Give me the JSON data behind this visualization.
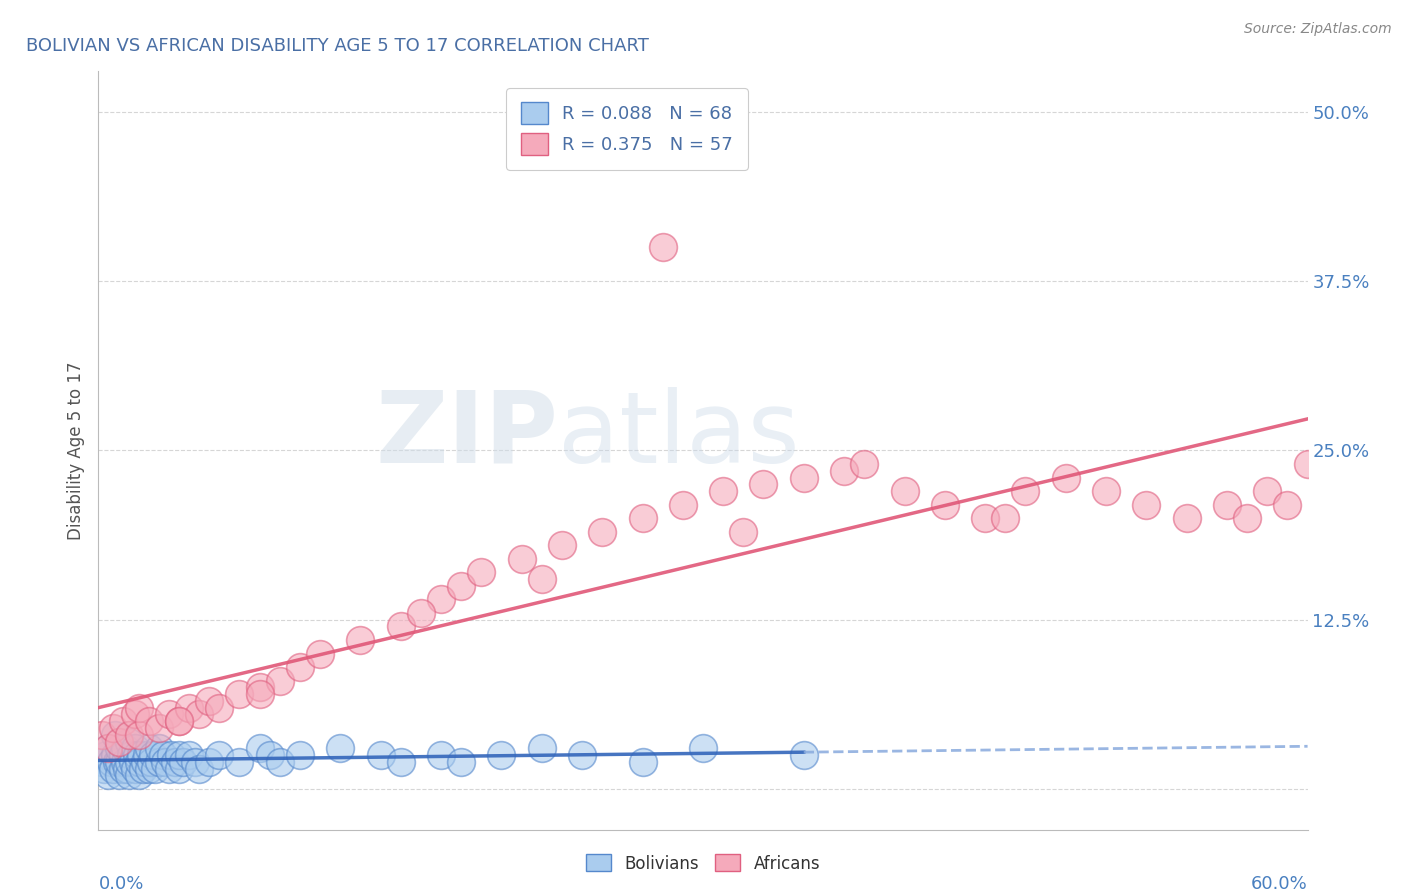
{
  "title": "BOLIVIAN VS AFRICAN DISABILITY AGE 5 TO 17 CORRELATION CHART",
  "source_text": "Source: ZipAtlas.com",
  "ylabel": "Disability Age 5 to 17",
  "xlim": [
    0.0,
    0.6
  ],
  "ylim": [
    -0.03,
    0.53
  ],
  "yticks": [
    0.0,
    0.125,
    0.25,
    0.375,
    0.5
  ],
  "ytick_labels": [
    "",
    "12.5%",
    "25.0%",
    "37.5%",
    "50.0%"
  ],
  "title_color": "#4a6fa5",
  "title_fontsize": 13,
  "background_color": "#ffffff",
  "grid_color": "#cccccc",
  "watermark_text": "ZIPatlas",
  "bolivian_face_color": "#aaccee",
  "bolivian_edge_color": "#5588cc",
  "african_face_color": "#f5aabb",
  "african_edge_color": "#e06080",
  "bolivian_line_color": "#3366bb",
  "bolivian_dash_color": "#88aadd",
  "african_line_color": "#e05878",
  "legend_color": "#4a6fa5",
  "boli_x": [
    0.002,
    0.003,
    0.004,
    0.005,
    0.005,
    0.006,
    0.007,
    0.008,
    0.008,
    0.009,
    0.01,
    0.01,
    0.01,
    0.012,
    0.012,
    0.013,
    0.013,
    0.014,
    0.015,
    0.015,
    0.015,
    0.016,
    0.017,
    0.018,
    0.018,
    0.019,
    0.02,
    0.02,
    0.021,
    0.022,
    0.023,
    0.024,
    0.025,
    0.025,
    0.026,
    0.027,
    0.028,
    0.03,
    0.03,
    0.032,
    0.033,
    0.035,
    0.036,
    0.038,
    0.04,
    0.04,
    0.042,
    0.045,
    0.048,
    0.05,
    0.055,
    0.06,
    0.07,
    0.08,
    0.085,
    0.09,
    0.1,
    0.12,
    0.14,
    0.15,
    0.17,
    0.18,
    0.2,
    0.22,
    0.24,
    0.27,
    0.3,
    0.35
  ],
  "boli_y": [
    0.02,
    0.015,
    0.025,
    0.01,
    0.03,
    0.02,
    0.015,
    0.025,
    0.04,
    0.02,
    0.01,
    0.02,
    0.03,
    0.015,
    0.025,
    0.02,
    0.03,
    0.015,
    0.01,
    0.02,
    0.035,
    0.025,
    0.02,
    0.015,
    0.03,
    0.025,
    0.01,
    0.02,
    0.025,
    0.015,
    0.02,
    0.025,
    0.015,
    0.03,
    0.02,
    0.025,
    0.015,
    0.02,
    0.03,
    0.025,
    0.02,
    0.015,
    0.025,
    0.02,
    0.015,
    0.025,
    0.02,
    0.025,
    0.02,
    0.015,
    0.02,
    0.025,
    0.02,
    0.03,
    0.025,
    0.02,
    0.025,
    0.03,
    0.025,
    0.02,
    0.025,
    0.02,
    0.025,
    0.03,
    0.025,
    0.02,
    0.03,
    0.025
  ],
  "afri_x": [
    0.002,
    0.005,
    0.007,
    0.01,
    0.012,
    0.015,
    0.018,
    0.02,
    0.02,
    0.025,
    0.03,
    0.035,
    0.04,
    0.045,
    0.05,
    0.055,
    0.06,
    0.07,
    0.08,
    0.09,
    0.1,
    0.11,
    0.13,
    0.15,
    0.17,
    0.18,
    0.19,
    0.21,
    0.23,
    0.25,
    0.27,
    0.29,
    0.31,
    0.33,
    0.35,
    0.37,
    0.38,
    0.4,
    0.42,
    0.44,
    0.46,
    0.48,
    0.5,
    0.52,
    0.54,
    0.56,
    0.57,
    0.58,
    0.59,
    0.6,
    0.32,
    0.22,
    0.16,
    0.08,
    0.04,
    0.28,
    0.45
  ],
  "afri_y": [
    0.04,
    0.03,
    0.045,
    0.035,
    0.05,
    0.04,
    0.055,
    0.04,
    0.06,
    0.05,
    0.045,
    0.055,
    0.05,
    0.06,
    0.055,
    0.065,
    0.06,
    0.07,
    0.075,
    0.08,
    0.09,
    0.1,
    0.11,
    0.12,
    0.14,
    0.15,
    0.16,
    0.17,
    0.18,
    0.19,
    0.2,
    0.21,
    0.22,
    0.225,
    0.23,
    0.235,
    0.24,
    0.22,
    0.21,
    0.2,
    0.22,
    0.23,
    0.22,
    0.21,
    0.2,
    0.21,
    0.2,
    0.22,
    0.21,
    0.24,
    0.19,
    0.155,
    0.13,
    0.07,
    0.05,
    0.4,
    0.2
  ]
}
